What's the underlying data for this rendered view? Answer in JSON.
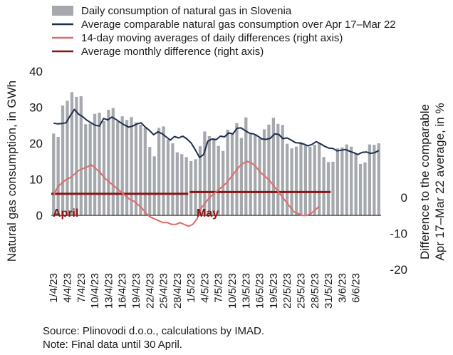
{
  "chart_data": {
    "type": "bar",
    "legend": [
      {
        "label": "Daily consumption of natural gas in Slovenia",
        "color": "#a5a8ad",
        "kind": "bar"
      },
      {
        "label": "Average comparable natural gas consumption over Apr 17–Mar 22",
        "color": "#1f2d4d",
        "kind": "line"
      },
      {
        "label": "14-day moving averages of daily differences (right axis)",
        "color": "#e26a6a",
        "kind": "line"
      },
      {
        "label": "Average monthly difference (right axis)",
        "color": "#8b1414",
        "kind": "line"
      }
    ],
    "ylabel_left": "Natural gas consumption, in GWh",
    "ylabel_right": "Difference to the comparable Apr 17–Mar 22 average, in %",
    "left_ticks": [
      "40",
      "30",
      "20",
      "10",
      "0"
    ],
    "right_ticks": [
      "0",
      "-10",
      "-20"
    ],
    "ylim_left": [
      -15,
      40
    ],
    "ylim_right": [
      -20,
      35
    ],
    "x_tick_labels": [
      "1/4/23",
      "4/4/23",
      "7/4/23",
      "10/4/23",
      "13/4/23",
      "16/4/23",
      "19/4/23",
      "22/4/23",
      "25/4/23",
      "28/4/23",
      "1/5/23",
      "4/5/23",
      "7/5/23",
      "10/5/23",
      "13/5/23",
      "16/5/23",
      "19/5/23",
      "22/5/23",
      "25/5/23",
      "28/5/23",
      "31/5/23",
      "3/6/23",
      "6/6/23"
    ],
    "month_labels": [
      {
        "text": "April",
        "color": "#8b1414"
      },
      {
        "text": "May",
        "color": "#8b1414"
      }
    ],
    "daily_consumption": [
      22.7,
      21.8,
      30.5,
      31.8,
      34.2,
      32.9,
      33.1,
      25.3,
      25.5,
      28.2,
      28.5,
      26.2,
      29.3,
      29.8,
      26.1,
      27.5,
      26.5,
      27.3,
      25.8,
      25.2,
      24.3,
      19.0,
      16.4,
      24.3,
      24.7,
      21.1,
      20.0,
      17.5,
      17.0,
      16.2,
      15.1,
      15.6,
      19.2,
      23.3,
      22.0,
      21.4,
      19.3,
      17.9,
      23.8,
      22.9,
      25.6,
      21.5,
      27.2,
      22.8,
      22.6,
      21.4,
      23.9,
      25.2,
      27.1,
      25.4,
      25.1,
      19.9,
      18.6,
      19.1,
      20.3,
      19.4,
      19.1,
      19.6,
      20.1,
      16.2,
      14.8,
      14.9,
      18.6,
      18.9,
      19.7,
      19.1,
      17.2,
      14.3,
      14.7,
      19.7,
      19.6,
      20.0
    ],
    "comparable_average": [
      25.6,
      25.4,
      25.5,
      25.7,
      27.7,
      29.4,
      28.1,
      27.4,
      26.4,
      25.7,
      25.0,
      24.8,
      26.9,
      26.5,
      27.3,
      26.6,
      25.8,
      25.1,
      24.5,
      24.8,
      25.4,
      25.7,
      24.5,
      23.6,
      22.4,
      23.2,
      22.7,
      21.8,
      20.9,
      21.9,
      21.5,
      22.0,
      21.2,
      20.1,
      18.2,
      16.1,
      16.9,
      20.6,
      21.2,
      21.0,
      22.0,
      21.8,
      22.9,
      22.6,
      24.2,
      24.3,
      23.5,
      22.8,
      22.6,
      22.0,
      21.2,
      21.1,
      21.4,
      22.6,
      22.5,
      21.3,
      21.5,
      20.9,
      20.2,
      20.1,
      19.8,
      19.3,
      19.7,
      20.5,
      19.9,
      19.2,
      18.7,
      18.6,
      17.9,
      18.1,
      18.3,
      17.8,
      17.4,
      16.9,
      17.5,
      17.6,
      17.2,
      17.4,
      18.0
    ],
    "moving_avg_diff": [
      0.5,
      3.0,
      4.0,
      5.0,
      5.5,
      6.5,
      7.5,
      8.0,
      8.5,
      9.0,
      8.0,
      7.0,
      5.5,
      4.5,
      3.5,
      2.5,
      1.5,
      0.5,
      -0.5,
      -1.0,
      -2.0,
      -3.0,
      -4.5,
      -5.5,
      -6.0,
      -6.5,
      -7.0,
      -7.0,
      -7.5,
      -7.5,
      -7.0,
      -7.5,
      -8.0,
      -7.5,
      -6.0,
      -3.0,
      -1.5,
      0.0,
      1.0,
      2.0,
      3.0,
      4.0,
      5.5,
      7.0,
      8.5,
      9.5,
      10.0,
      9.5,
      8.5,
      7.0,
      6.0,
      5.0,
      3.5,
      2.0,
      0.5,
      -1.0,
      -2.5,
      -4.0,
      -4.5,
      -5.0,
      -5.0,
      -4.5,
      -3.5,
      -2.5
    ],
    "monthly_avg_april": 1.0,
    "monthly_avg_may": 1.5
  },
  "footer": {
    "source": "Source: Plinovodi d.o.o., calculations by IMAD.",
    "note": "Note: Final data until 30 April."
  }
}
